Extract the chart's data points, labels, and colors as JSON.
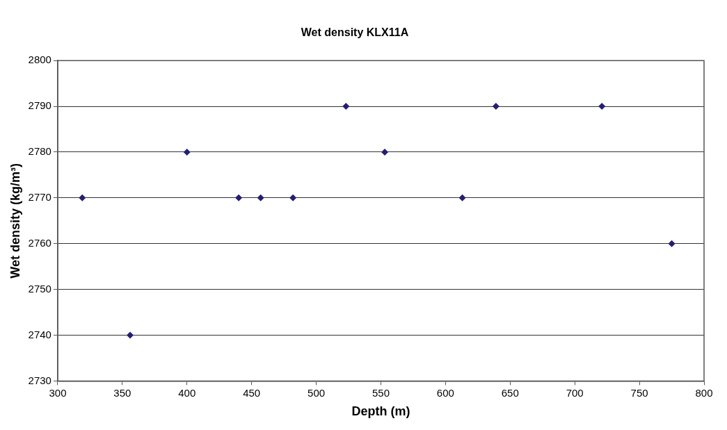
{
  "chart_data": {
    "type": "scatter",
    "title": "Wet density KLX11A",
    "xlabel": "Depth (m)",
    "ylabel": "Wet density (kg/m³)",
    "x": [
      319,
      356,
      400,
      440,
      457,
      482,
      523,
      553,
      613,
      639,
      721,
      775
    ],
    "values": [
      2770,
      2740,
      2780,
      2770,
      2770,
      2770,
      2790,
      2780,
      2770,
      2790,
      2790,
      2760
    ],
    "color": "#231f70",
    "marker": "diamond",
    "grid": "y",
    "legend": false,
    "xlim": [
      300,
      800
    ],
    "xticks": [
      300,
      350,
      400,
      450,
      500,
      550,
      600,
      650,
      700,
      750,
      800
    ],
    "ylim": [
      2730,
      2800
    ],
    "yticks": [
      2730,
      2740,
      2750,
      2760,
      2770,
      2780,
      2790,
      2800
    ]
  }
}
